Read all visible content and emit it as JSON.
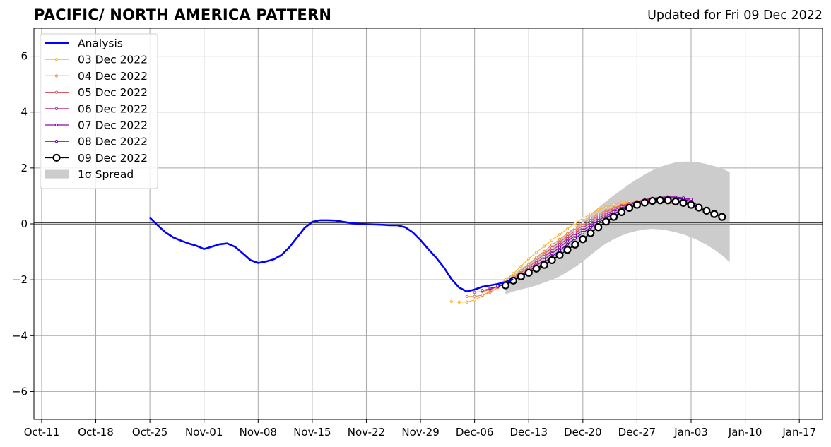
{
  "header": {
    "title": "PACIFIC/ NORTH AMERICA PATTERN",
    "updated": "Updated for Fri 09 Dec 2022"
  },
  "chart_data": {
    "type": "line",
    "title": "PACIFIC/ NORTH AMERICA PATTERN",
    "subtitle": "Updated for Fri 09 Dec 2022",
    "xlabel": "",
    "ylabel": "",
    "x_axis": {
      "type": "date",
      "range": [
        "2022-10-10",
        "2023-01-20"
      ],
      "ticks": [
        {
          "date": "2022-10-11",
          "label": "Oct-11"
        },
        {
          "date": "2022-10-18",
          "label": "Oct-18"
        },
        {
          "date": "2022-10-25",
          "label": "Oct-25"
        },
        {
          "date": "2022-11-01",
          "label": "Nov-01"
        },
        {
          "date": "2022-11-08",
          "label": "Nov-08"
        },
        {
          "date": "2022-11-15",
          "label": "Nov-15"
        },
        {
          "date": "2022-11-22",
          "label": "Nov-22"
        },
        {
          "date": "2022-11-29",
          "label": "Nov-29"
        },
        {
          "date": "2022-12-06",
          "label": "Dec-06"
        },
        {
          "date": "2022-12-13",
          "label": "Dec-13"
        },
        {
          "date": "2022-12-20",
          "label": "Dec-20"
        },
        {
          "date": "2022-12-27",
          "label": "Dec-27"
        },
        {
          "date": "2023-01-03",
          "label": "Jan-03"
        },
        {
          "date": "2023-01-10",
          "label": "Jan-10"
        },
        {
          "date": "2023-01-17",
          "label": "Jan-17"
        }
      ]
    },
    "y_axis": {
      "range": [
        -7,
        7
      ],
      "ticks": [
        {
          "value": -6,
          "label": "−6"
        },
        {
          "value": -4,
          "label": "−4"
        },
        {
          "value": -2,
          "label": "−2"
        },
        {
          "value": 0,
          "label": "0"
        },
        {
          "value": 2,
          "label": "2"
        },
        {
          "value": 4,
          "label": "4"
        },
        {
          "value": 6,
          "label": "6"
        }
      ]
    },
    "grid": true,
    "zero_line": true,
    "legend": {
      "placement": "top-left",
      "entries": [
        {
          "label": "Analysis",
          "kind": "line",
          "color": "#0000ff"
        },
        {
          "label": "03 Dec 2022",
          "kind": "marker-line",
          "color": "#fdb42f"
        },
        {
          "label": "04 Dec 2022",
          "kind": "marker-line",
          "color": "#f48849"
        },
        {
          "label": "05 Dec 2022",
          "kind": "marker-line",
          "color": "#db5c68"
        },
        {
          "label": "06 Dec 2022",
          "kind": "marker-line",
          "color": "#b83289"
        },
        {
          "label": "07 Dec 2022",
          "kind": "marker-line",
          "color": "#8b0aa5"
        },
        {
          "label": "08 Dec 2022",
          "kind": "marker-line",
          "color": "#5302a3"
        },
        {
          "label": "09 Dec 2022",
          "kind": "big-marker-line",
          "color": "#000000"
        },
        {
          "label": "1σ Spread",
          "kind": "patch",
          "color": "#cccccc"
        }
      ]
    },
    "analysis": {
      "name": "Analysis",
      "color": "#0000ff",
      "start": "2022-10-25",
      "values": [
        0.22,
        -0.05,
        -0.3,
        -0.48,
        -0.6,
        -0.7,
        -0.78,
        -0.9,
        -0.82,
        -0.73,
        -0.7,
        -0.82,
        -1.05,
        -1.3,
        -1.4,
        -1.35,
        -1.27,
        -1.12,
        -0.85,
        -0.5,
        -0.15,
        0.07,
        0.13,
        0.13,
        0.12,
        0.07,
        0.03,
        0.0,
        -0.01,
        -0.02,
        -0.03,
        -0.05,
        -0.05,
        -0.12,
        -0.3,
        -0.58,
        -0.9,
        -1.2,
        -1.55,
        -1.97,
        -2.28,
        -2.42,
        -2.35,
        -2.25,
        -2.2,
        -2.15,
        -2.08,
        -1.98
      ]
    },
    "forecasts": [
      {
        "name": "03 Dec 2022",
        "color": "#fdb42f",
        "start": "2022-12-03",
        "values": [
          -2.78,
          -2.8,
          -2.8,
          -2.72,
          -2.58,
          -2.4,
          -2.2,
          -2.0,
          -1.78,
          -1.52,
          -1.25,
          -1.02,
          -0.8,
          -0.58,
          -0.38,
          -0.18,
          0.02,
          0.2,
          0.36,
          0.5,
          0.6,
          0.69,
          0.75,
          0.8,
          0.82,
          0.83,
          0.82,
          0.8,
          0.76,
          0.72
        ]
      },
      {
        "name": "04 Dec 2022",
        "color": "#f48849",
        "start": "2022-12-05",
        "values": [
          -2.6,
          -2.6,
          -2.55,
          -2.45,
          -2.28,
          -2.1,
          -1.9,
          -1.68,
          -1.45,
          -1.2,
          -0.98,
          -0.75,
          -0.55,
          -0.35,
          -0.15,
          0.03,
          0.2,
          0.35,
          0.48,
          0.58,
          0.67,
          0.73,
          0.78,
          0.8,
          0.8,
          0.78,
          0.74,
          0.7
        ]
      },
      {
        "name": "05 Dec 2022",
        "color": "#db5c68",
        "start": "2022-12-06",
        "values": [
          -2.45,
          -2.42,
          -2.35,
          -2.25,
          -2.12,
          -1.95,
          -1.75,
          -1.55,
          -1.32,
          -1.08,
          -0.86,
          -0.65,
          -0.45,
          -0.25,
          -0.06,
          0.12,
          0.28,
          0.42,
          0.55,
          0.65,
          0.73,
          0.8,
          0.85,
          0.87,
          0.88,
          0.87,
          0.84,
          0.8
        ]
      },
      {
        "name": "06 Dec 2022",
        "color": "#b83289",
        "start": "2022-12-07",
        "values": [
          -2.38,
          -2.32,
          -2.25,
          -2.15,
          -2.0,
          -1.82,
          -1.62,
          -1.4,
          -1.18,
          -0.96,
          -0.74,
          -0.53,
          -0.33,
          -0.14,
          0.04,
          0.2,
          0.35,
          0.49,
          0.61,
          0.72,
          0.8,
          0.87,
          0.92,
          0.94,
          0.95,
          0.93,
          0.9,
          0.85
        ]
      },
      {
        "name": "07 Dec 2022",
        "color": "#8b0aa5",
        "start": "2022-12-08",
        "values": [
          -2.3,
          -2.25,
          -2.15,
          -2.02,
          -1.87,
          -1.7,
          -1.5,
          -1.28,
          -1.06,
          -0.84,
          -0.62,
          -0.42,
          -0.23,
          -0.05,
          0.12,
          0.28,
          0.43,
          0.56,
          0.67,
          0.77,
          0.85,
          0.91,
          0.95,
          0.97,
          0.96,
          0.93,
          0.88
        ]
      },
      {
        "name": "08 Dec 2022",
        "color": "#5302a3",
        "start": "2022-12-09",
        "values": [
          -2.22,
          -2.14,
          -2.03,
          -1.9,
          -1.75,
          -1.58,
          -1.38,
          -1.17,
          -0.95,
          -0.73,
          -0.52,
          -0.32,
          -0.13,
          0.05,
          0.21,
          0.36,
          0.5,
          0.62,
          0.72,
          0.8,
          0.87,
          0.91,
          0.93,
          0.92,
          0.88,
          0.8,
          0.65
        ]
      },
      {
        "name": "09 Dec 2022",
        "color": "#000000",
        "start": "2022-12-10",
        "values": [
          -2.2,
          -2.03,
          -1.88,
          -1.75,
          -1.6,
          -1.47,
          -1.3,
          -1.12,
          -0.93,
          -0.74,
          -0.55,
          -0.33,
          -0.12,
          0.08,
          0.25,
          0.42,
          0.57,
          0.68,
          0.76,
          0.82,
          0.84,
          0.84,
          0.8,
          0.75,
          0.68,
          0.58,
          0.47,
          0.35,
          0.25
        ]
      }
    ],
    "spread": {
      "name": "1σ Spread",
      "color": "#cccccc",
      "start": "2022-12-10",
      "upper": [
        -2.0,
        -1.8,
        -1.6,
        -1.4,
        -1.2,
        -1.0,
        -0.8,
        -0.57,
        -0.33,
        -0.1,
        0.12,
        0.35,
        0.58,
        0.8,
        1.02,
        1.22,
        1.42,
        1.6,
        1.77,
        1.92,
        2.04,
        2.13,
        2.2,
        2.23,
        2.23,
        2.2,
        2.14,
        2.07,
        1.98,
        1.85
      ],
      "lower": [
        -2.52,
        -2.42,
        -2.35,
        -2.28,
        -2.2,
        -2.1,
        -2.0,
        -1.88,
        -1.72,
        -1.55,
        -1.35,
        -1.12,
        -0.9,
        -0.7,
        -0.55,
        -0.42,
        -0.32,
        -0.25,
        -0.2,
        -0.18,
        -0.2,
        -0.24,
        -0.3,
        -0.38,
        -0.48,
        -0.6,
        -0.75,
        -0.92,
        -1.12,
        -1.38
      ]
    }
  }
}
